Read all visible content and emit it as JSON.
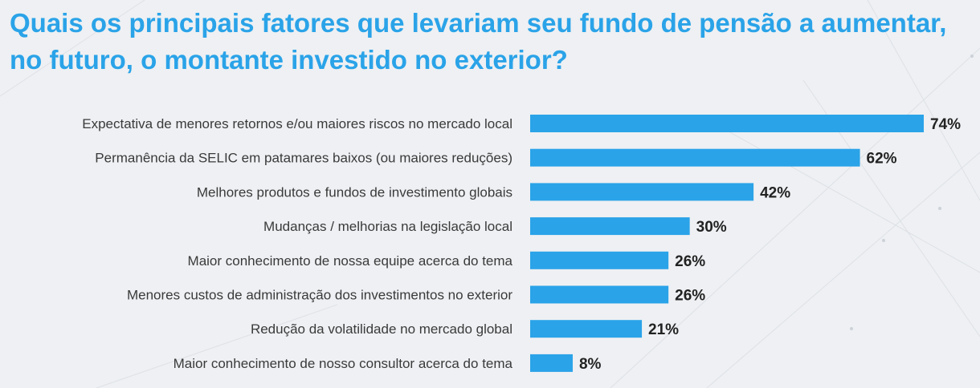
{
  "title": "Quais os principais fatores que levariam seu fundo de pensão a aumentar, no futuro, o montante investido no exterior?",
  "colors": {
    "title": "#2aa3e8",
    "bar": "#2aa3e8",
    "label": "#3a3a3a",
    "value": "#222222",
    "background": "#eef0f3"
  },
  "chart_data": {
    "type": "bar",
    "orientation": "horizontal",
    "title": "Quais os principais fatores que levariam seu fundo de pensão a aumentar, no futuro, o montante investido no exterior?",
    "categories": [
      "Expectativa de menores retornos e/ou maiores riscos no mercado local",
      "Permanência da SELIC em patamares baixos (ou maiores reduções)",
      "Melhores produtos e fundos de investimento globais",
      "Mudanças / melhorias na legislação local",
      "Maior conhecimento de nossa equipe acerca do tema",
      "Menores custos de administração dos investimentos no exterior",
      "Redução da volatilidade no mercado global",
      "Maior conhecimento de nosso consultor acerca do tema"
    ],
    "values": [
      74,
      62,
      42,
      30,
      26,
      26,
      21,
      8
    ],
    "value_labels": [
      "74%",
      "62%",
      "42%",
      "30%",
      "26%",
      "26%",
      "21%",
      "8%"
    ],
    "unit": "%",
    "xlim": [
      0,
      74
    ],
    "xlabel": "",
    "ylabel": "",
    "grid": false,
    "legend": "none"
  }
}
